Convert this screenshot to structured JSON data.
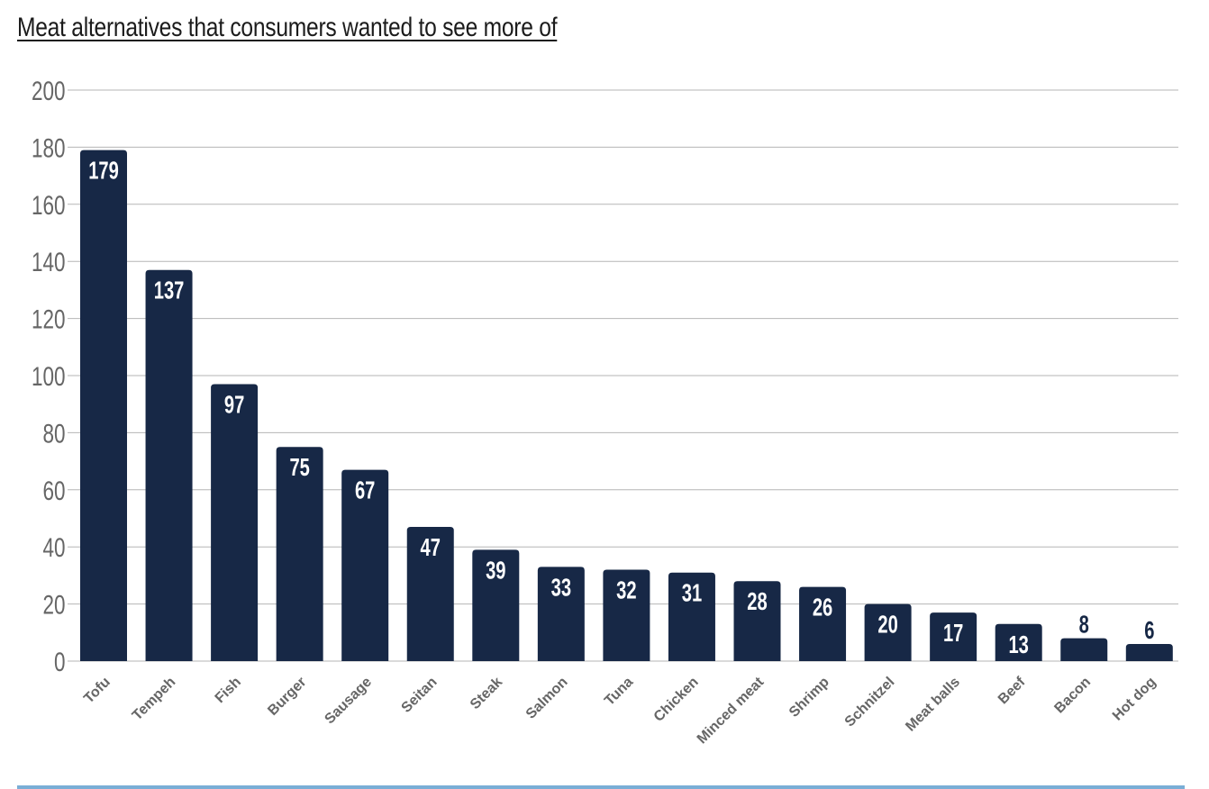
{
  "chart_data": {
    "type": "bar",
    "title": "Meat alternatives that consumers wanted to see more of",
    "xlabel": "",
    "ylabel": "",
    "ylim": [
      0,
      200
    ],
    "yticks": [
      0,
      20,
      40,
      60,
      80,
      100,
      120,
      140,
      160,
      180,
      200
    ],
    "grid": true,
    "categories": [
      "Tofu",
      "Tempeh",
      "Fish",
      "Burger",
      "Sausage",
      "Seitan",
      "Steak",
      "Salmon",
      "Tuna",
      "Chicken",
      "Minced meat",
      "Shrimp",
      "Schnitzel",
      "Meat balls",
      "Beef",
      "Bacon",
      "Hot dog"
    ],
    "values": [
      179,
      137,
      97,
      75,
      67,
      47,
      39,
      33,
      32,
      31,
      28,
      26,
      20,
      17,
      13,
      8,
      6
    ],
    "colors": {
      "bar": "#172846",
      "label_inside": "#ffffff",
      "label_outside": "#172846",
      "axis_text": "#666666",
      "grid": "#b5b5b5",
      "rule": "#7aaed6"
    }
  }
}
